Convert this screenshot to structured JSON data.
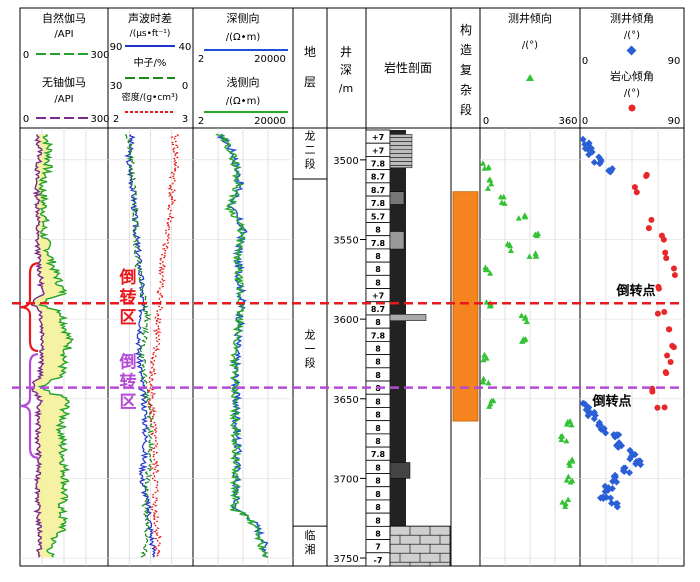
{
  "headers": {
    "gamma": {
      "title": "自然伽马",
      "unit": "/API",
      "min": "0",
      "max": "300"
    },
    "no_u_gamma": {
      "title": "无铀伽马",
      "unit": "/API",
      "min": "0",
      "max": "300"
    },
    "sonic": {
      "title": "声波时差",
      "unit": "/(μs•ft⁻¹)",
      "min": "90",
      "max": "40"
    },
    "neutron": {
      "title": "中子/%",
      "min": "30",
      "max": "0"
    },
    "density": {
      "title": "密度/(g•cm³)",
      "min": "2",
      "max": "3"
    },
    "deep_res": {
      "title": "深侧向",
      "unit": "/(Ω•m)",
      "min": "2",
      "max": "20000"
    },
    "shallow_res": {
      "title": "浅侧向",
      "unit": "/(Ω•m)",
      "min": "2",
      "max": "20000"
    },
    "strata": {
      "title": "地层"
    },
    "depth": {
      "title": "井深",
      "unit": "/m"
    },
    "litho": {
      "title": "岩性剖面"
    },
    "complex": {
      "title": "构造复杂段"
    },
    "dip_dir": {
      "title": "测井倾向",
      "unit": "/(°)",
      "min": "0",
      "max": "360"
    },
    "dip_angle": {
      "title": "测井倾角",
      "unit": "/(°)",
      "core_title": "岩心倾角",
      "core_unit": "/(°)",
      "min": "0",
      "max": "90"
    }
  },
  "strata": [
    {
      "label": "龙\n二\n段",
      "top": 3480,
      "bottom": 3512
    },
    {
      "label": "龙\n一\n段",
      "top": 3512,
      "bottom": 3730
    },
    {
      "label": "临\n湘",
      "top": 3730,
      "bottom": 3755
    }
  ],
  "depth_ticks": [
    3500,
    3550,
    3600,
    3650,
    3700,
    3750
  ],
  "lith_labels": [
    "+7",
    "+7",
    "7.8",
    "8.7",
    "8.7",
    "7.8",
    "5.7",
    "8",
    "7.8",
    "8",
    "8",
    "8",
    "+7",
    "8.7",
    "8",
    "7.8",
    "8",
    "8",
    "8",
    "8",
    "8",
    "8",
    "8",
    "8",
    "7.8",
    "8",
    "8",
    "8",
    "8",
    "8",
    "8",
    "7",
    "-7"
  ],
  "annotations": {
    "zone1": "倒转区",
    "zone2": "倒转区",
    "point1": "倒转点",
    "point2": "倒转点"
  },
  "colors": {
    "gamma": "#22a22a",
    "no_u_gamma": "#7a2a8a",
    "fill": "#f4f19a",
    "sonic": "#2233cc",
    "neutron": "#1a8a1a",
    "density": "#e81818",
    "deep": "#1f4fd6",
    "shallow": "#28a828",
    "complex": "#f5841f",
    "dip_dir": "#33c233",
    "dip_angle": "#2a5fd6",
    "core": "#e82828",
    "zone1": "#e8181c",
    "zone2": "#b44ad6"
  },
  "chart_data": {
    "type": "line",
    "title": "",
    "y_axis": {
      "label": "井深/m",
      "range": [
        3480,
        3755
      ]
    },
    "complex_zone": {
      "top": 3520,
      "bottom": 3664
    },
    "inversion_zones": [
      {
        "label": "倒转区",
        "top": 3565,
        "bottom": 3620,
        "marker_depth": 3590
      },
      {
        "label": "倒转区",
        "top": 3622,
        "bottom": 3687,
        "marker_depth": 3643
      }
    ],
    "series": [
      {
        "name": "自然伽马",
        "unit": "API",
        "range": [
          0,
          300
        ],
        "depth": [
          3484,
          3495,
          3505,
          3515,
          3525,
          3535,
          3545,
          3555,
          3565,
          3575,
          3585,
          3590,
          3595,
          3605,
          3615,
          3625,
          3635,
          3643,
          3650,
          3660,
          3670,
          3680,
          3690,
          3700,
          3710,
          3720,
          3730,
          3740,
          3750
        ],
        "values": [
          90,
          100,
          95,
          75,
          80,
          85,
          78,
          95,
          110,
          130,
          150,
          60,
          140,
          155,
          170,
          150,
          140,
          60,
          160,
          150,
          140,
          145,
          150,
          155,
          150,
          140,
          150,
          110,
          100
        ]
      },
      {
        "name": "无铀伽马",
        "unit": "API",
        "range": [
          0,
          300
        ],
        "depth": [
          3484,
          3495,
          3505,
          3515,
          3525,
          3535,
          3545,
          3555,
          3565,
          3575,
          3585,
          3590,
          3595,
          3605,
          3615,
          3625,
          3635,
          3643,
          3650,
          3660,
          3670,
          3680,
          3690,
          3700,
          3710,
          3720,
          3730,
          3740,
          3750
        ],
        "values": [
          55,
          70,
          60,
          55,
          60,
          62,
          58,
          60,
          65,
          70,
          75,
          40,
          72,
          75,
          80,
          72,
          70,
          38,
          68,
          62,
          60,
          62,
          64,
          60,
          62,
          60,
          65,
          70,
          60
        ]
      },
      {
        "name": "声波时差",
        "unit": "μs/ft",
        "range": [
          90,
          40
        ],
        "depth": [
          3484,
          3500,
          3520,
          3540,
          3560,
          3580,
          3600,
          3620,
          3640,
          3660,
          3680,
          3700,
          3720,
          3740,
          3750
        ],
        "values": [
          76,
          78,
          75,
          74,
          72,
          70,
          70,
          72,
          70,
          68,
          68,
          70,
          66,
          64,
          62
        ]
      },
      {
        "name": "中子",
        "unit": "%",
        "range": [
          30,
          0
        ],
        "depth": [
          3484,
          3500,
          3520,
          3540,
          3560,
          3580,
          3600,
          3620,
          3640,
          3660,
          3680,
          3700,
          3720,
          3740,
          3750
        ],
        "values": [
          23,
          22,
          21,
          20,
          20,
          18,
          16,
          18,
          17,
          15,
          15,
          16,
          17,
          16,
          18
        ]
      },
      {
        "name": "密度",
        "unit": "g/cm3",
        "range": [
          2,
          3
        ],
        "depth": [
          3484,
          3500,
          3520,
          3540,
          3560,
          3580,
          3600,
          3620,
          3640,
          3660,
          3680,
          3700,
          3720,
          3740,
          3750
        ],
        "values": [
          2.78,
          2.8,
          2.75,
          2.72,
          2.65,
          2.62,
          2.6,
          2.55,
          2.5,
          2.52,
          2.54,
          2.56,
          2.55,
          2.6,
          2.58
        ]
      },
      {
        "name": "深侧向",
        "unit": "Ω·m",
        "range": [
          2,
          20000
        ],
        "scale": "log",
        "depth": [
          3484,
          3500,
          3515,
          3530,
          3545,
          3560,
          3575,
          3590,
          3605,
          3620,
          3640,
          3660,
          3680,
          3700,
          3720,
          3735,
          3750
        ],
        "values": [
          20,
          100,
          150,
          60,
          200,
          120,
          150,
          180,
          140,
          110,
          100,
          110,
          120,
          110,
          100,
          1000,
          2000
        ]
      },
      {
        "name": "浅侧向",
        "unit": "Ω·m",
        "range": [
          2,
          20000
        ],
        "scale": "log",
        "depth": [
          3484,
          3500,
          3515,
          3530,
          3545,
          3560,
          3575,
          3590,
          3605,
          3620,
          3640,
          3660,
          3680,
          3700,
          3720,
          3735,
          3750
        ],
        "values": [
          18,
          90,
          130,
          55,
          180,
          110,
          135,
          160,
          125,
          100,
          90,
          95,
          105,
          100,
          90,
          800,
          1500
        ]
      },
      {
        "name": "测井倾向",
        "unit": "°",
        "range": [
          0,
          360
        ],
        "type": "scatter",
        "depth": [
          3505,
          3515,
          3525,
          3535,
          3545,
          3555,
          3560,
          3570,
          3590,
          3600,
          3615,
          3625,
          3640,
          3652,
          3665,
          3675,
          3690,
          3700,
          3715
        ],
        "values": [
          20,
          30,
          80,
          150,
          200,
          110,
          190,
          30,
          30,
          160,
          150,
          20,
          20,
          40,
          320,
          300,
          330,
          320,
          310
        ]
      },
      {
        "name": "测井倾角",
        "unit": "°",
        "range": [
          0,
          90
        ],
        "type": "scatter",
        "depth": [
          3490,
          3495,
          3500,
          3505,
          3655,
          3660,
          3665,
          3670,
          3675,
          3680,
          3685,
          3690,
          3695,
          3700,
          3705,
          3710,
          3715
        ],
        "values": [
          5,
          8,
          15,
          25,
          5,
          10,
          15,
          20,
          30,
          35,
          45,
          50,
          40,
          30,
          25,
          20,
          30
        ]
      },
      {
        "name": "岩心倾角",
        "unit": "°",
        "range": [
          0,
          90
        ],
        "type": "scatter",
        "depth": [
          3510,
          3520,
          3540,
          3550,
          3560,
          3570,
          3580,
          3595,
          3605,
          3615,
          3625,
          3635,
          3645,
          3655
        ],
        "values": [
          55,
          50,
          60,
          70,
          75,
          80,
          65,
          70,
          75,
          80,
          78,
          75,
          60,
          70
        ]
      }
    ]
  }
}
